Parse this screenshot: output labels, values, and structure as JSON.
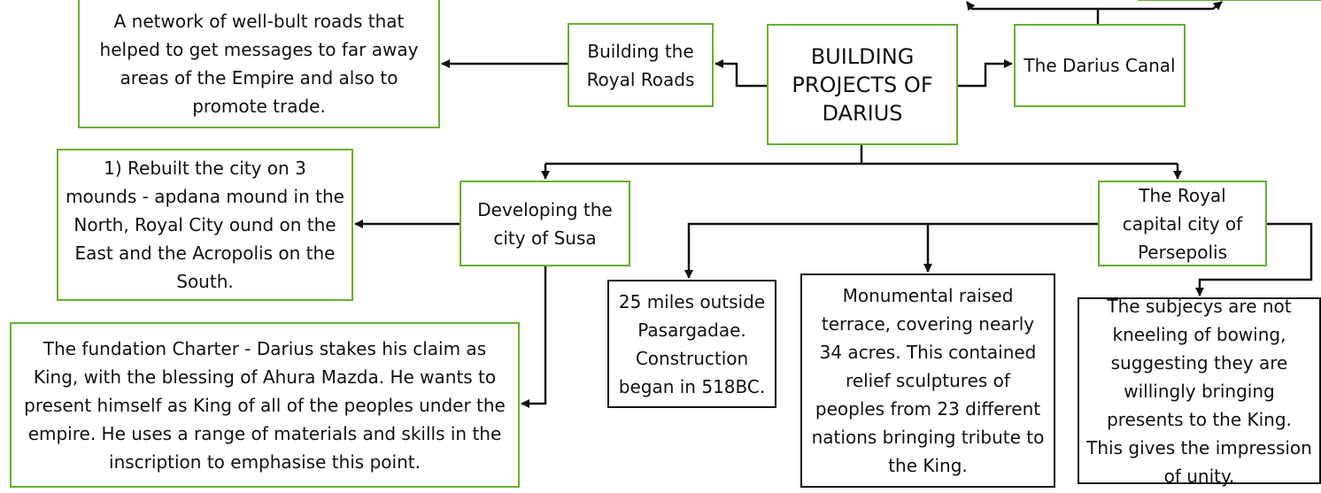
{
  "nodes": [
    {
      "id": "center",
      "label": "BUILDING PROJECTS OF DARIUS"
    },
    {
      "id": "roads",
      "label": "Building the Royal Roads"
    },
    {
      "id": "roads-desc",
      "label": "A network of well-bult roads that helped to get messages to far away areas of the Empire and also to promote trade."
    },
    {
      "id": "canal",
      "label": "The Darius Canal"
    },
    {
      "id": "susa",
      "label": "Developing the city of Susa"
    },
    {
      "id": "susa-mounds",
      "label": "1) Rebuilt the city on 3 mounds - apdana mound in the North, Royal City ound on the East and the Acropolis on the South."
    },
    {
      "id": "susa-charter",
      "label": "The fundation Charter - Darius stakes his claim as King, with the blessing of Ahura Mazda. He wants to present himself as King of all of the peoples under the empire. He uses a range of materials and skills in the inscription to emphasise this point."
    },
    {
      "id": "persepolis",
      "label": "The Royal capital city of Persepolis"
    },
    {
      "id": "persepolis-location",
      "label": "25 miles outside Pasargadae. Construction began in 518BC."
    },
    {
      "id": "persepolis-terrace",
      "label": "Monumental raised terrace, covering nearly 34 acres. This contained relief sculptures of peoples from 23 different nations bringing tribute to the King."
    },
    {
      "id": "persepolis-subjects",
      "label": "The subjecys are not kneeling of bowing, suggesting they are willingly bringing presents to the King. This gives the impression of unity."
    }
  ]
}
